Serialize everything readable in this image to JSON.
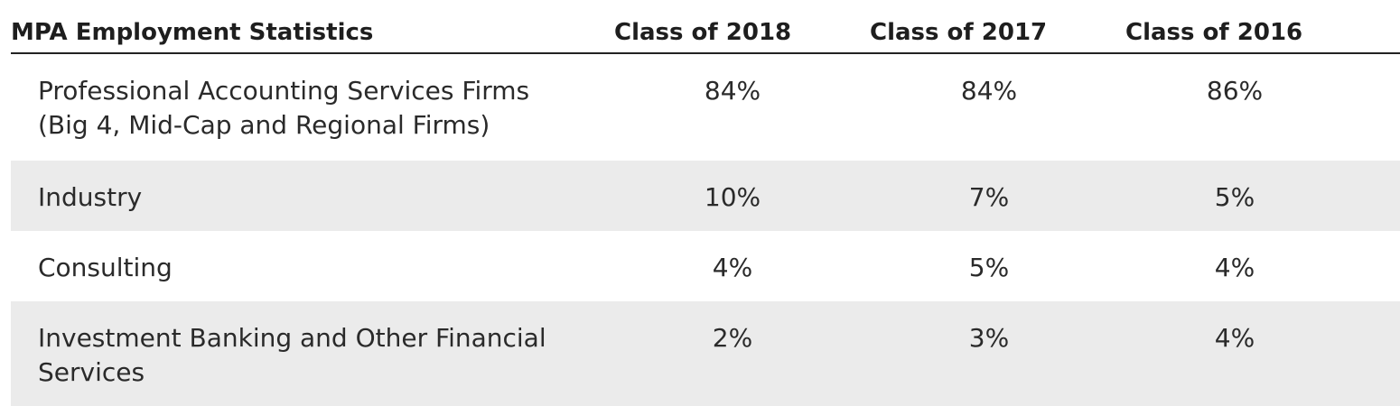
{
  "table": {
    "headers": [
      "MPA Employment Statistics",
      "Class of 2018",
      "Class of 2017",
      "Class of 2016"
    ],
    "rows": [
      {
        "label": "Professional Accounting Services Firms (Big 4, Mid-Cap and Regional Firms)",
        "values": [
          "84%",
          "84%",
          "86%"
        ]
      },
      {
        "label": "Industry",
        "values": [
          "10%",
          "7%",
          "5%"
        ]
      },
      {
        "label": "Consulting",
        "values": [
          "4%",
          "5%",
          "4%"
        ]
      },
      {
        "label": "Investment Banking and Other Financial Services",
        "values": [
          "2%",
          "3%",
          "4%"
        ]
      }
    ]
  },
  "colors": {
    "text": "#2a2a2a",
    "header_rule": "#222222",
    "alt_row_bg": "#ebebeb"
  }
}
